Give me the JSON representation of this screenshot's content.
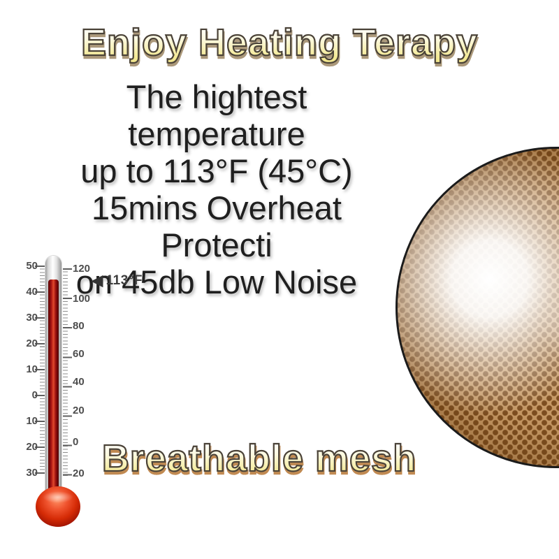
{
  "title": {
    "text": "Enjoy Heating Terapy"
  },
  "description": {
    "lines": [
      "The hightest temperature",
      "up to 113°F (45°C)",
      "15mins Overheat Protecti",
      "on 45db Low Noise"
    ]
  },
  "thermometer": {
    "celsius_scale": [
      "50",
      "40",
      "30",
      "20",
      "10",
      "0",
      "10",
      "20",
      "30"
    ],
    "fahrenheit_scale": [
      "120",
      "100",
      "80",
      "60",
      "40",
      "20",
      "0",
      "20"
    ],
    "indicator": {
      "arrow": "◀",
      "label": "113°F"
    },
    "colors": {
      "mercury": "#a81414",
      "bulb": "#d52b06",
      "scale_text": "#4d4d4d"
    }
  },
  "mesh": {
    "caption": "Breathable mesh",
    "colors": {
      "base": "#c79a66",
      "dots": "#7d4e20",
      "glow": "#ffffff",
      "ring": "#1b1b1b"
    }
  },
  "style_colors": {
    "background": "#ffffff",
    "body_text": "#1f1f1f",
    "bubble_fill_top": "#ffffff",
    "bubble_fill_bottom": "#efe27f",
    "bubble_outline": "#4a4238",
    "title_shadow": "#ab987a",
    "caption_shadow": "#c18a52"
  }
}
